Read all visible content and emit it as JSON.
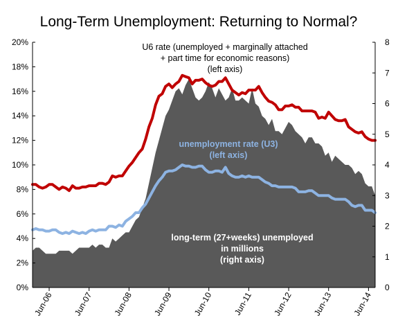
{
  "chart_data": {
    "type": "area",
    "title": "Long-Term Unemployment: Returning to Normal?",
    "x_tick_labels": [
      "Jun-06",
      "Jun-07",
      "Jun-08",
      "Jun-09",
      "Jun-10",
      "Jun-11",
      "Jun-12",
      "Jun-13",
      "Jun-14"
    ],
    "left_axis": {
      "ylim": [
        0,
        20
      ],
      "tick_labels": [
        "0%",
        "2%",
        "4%",
        "6%",
        "8%",
        "10%",
        "12%",
        "14%",
        "16%",
        "18%",
        "20%"
      ]
    },
    "right_axis": {
      "ylim": [
        0,
        8
      ],
      "tick_labels": [
        "0",
        "1",
        "2",
        "3",
        "4",
        "5",
        "6",
        "7",
        "8"
      ]
    },
    "grid": false,
    "start": "2006-01",
    "series": [
      {
        "name": "U6 rate (unemployed + marginally attached + part time for economic reasons) (left axis)",
        "label_lines": [
          "U6 rate (unemployed + marginally attached",
          "+ part time for economic reasons)",
          "(left axis)"
        ],
        "axis": "left",
        "style": "line",
        "color": "#c00000",
        "values": [
          8.4,
          8.4,
          8.2,
          8.1,
          8.2,
          8.4,
          8.4,
          8.2,
          8.0,
          8.2,
          8.1,
          7.9,
          8.3,
          8.1,
          8.1,
          8.2,
          8.2,
          8.3,
          8.3,
          8.3,
          8.5,
          8.5,
          8.4,
          8.6,
          9.1,
          9.0,
          9.1,
          9.1,
          9.5,
          9.9,
          10.2,
          10.6,
          11.0,
          11.3,
          12.1,
          13.1,
          13.8,
          14.9,
          15.6,
          15.8,
          16.4,
          16.6,
          16.3,
          16.6,
          16.8,
          17.3,
          17.2,
          17.1,
          16.6,
          16.9,
          16.9,
          17.0,
          16.7,
          16.5,
          16.4,
          16.5,
          16.8,
          16.8,
          17.1,
          16.6,
          16.1,
          15.9,
          15.7,
          15.9,
          15.8,
          16.1,
          16.1,
          16.1,
          16.4,
          15.9,
          15.5,
          15.2,
          15.1,
          14.9,
          14.5,
          14.5,
          14.8,
          14.8,
          14.9,
          14.7,
          14.7,
          14.4,
          14.4,
          14.4,
          14.4,
          14.3,
          13.8,
          13.9,
          13.8,
          14.3,
          14.0,
          13.7,
          13.6,
          13.6,
          13.7,
          13.1,
          12.9,
          12.7,
          12.6,
          12.7,
          12.3,
          12.1,
          12.0,
          12.0
        ]
      },
      {
        "name": "unemployment rate (U3) (left axis)",
        "label_lines": [
          "unemployment rate (U3)",
          "(left axis)"
        ],
        "axis": "left",
        "style": "line",
        "color": "#8db3e2",
        "values": [
          4.7,
          4.8,
          4.7,
          4.7,
          4.6,
          4.6,
          4.7,
          4.7,
          4.5,
          4.4,
          4.5,
          4.4,
          4.6,
          4.5,
          4.4,
          4.5,
          4.4,
          4.6,
          4.7,
          4.6,
          4.7,
          4.7,
          4.7,
          5.0,
          5.0,
          4.9,
          5.1,
          5.0,
          5.4,
          5.6,
          5.8,
          6.1,
          6.1,
          6.5,
          6.8,
          7.3,
          7.8,
          8.3,
          8.7,
          9.0,
          9.4,
          9.5,
          9.5,
          9.6,
          9.8,
          10.0,
          9.9,
          9.9,
          9.8,
          9.8,
          9.9,
          9.9,
          9.6,
          9.4,
          9.4,
          9.5,
          9.5,
          9.4,
          9.8,
          9.3,
          9.1,
          9.0,
          9.0,
          9.1,
          9.0,
          9.1,
          9.0,
          9.0,
          9.0,
          8.8,
          8.6,
          8.5,
          8.3,
          8.3,
          8.2,
          8.2,
          8.2,
          8.2,
          8.2,
          8.1,
          7.8,
          7.8,
          7.8,
          7.9,
          7.9,
          7.7,
          7.5,
          7.5,
          7.5,
          7.5,
          7.3,
          7.2,
          7.2,
          7.2,
          7.2,
          7.0,
          6.7,
          6.6,
          6.7,
          6.7,
          6.3,
          6.3,
          6.3,
          6.1
        ]
      },
      {
        "name": "long-term (27+weeks) unemployed in millions (right axis)",
        "label_lines": [
          "long-term (27+weeks) unemployed",
          "in millions",
          "(right axis)"
        ],
        "axis": "right",
        "style": "area",
        "color": "#595959",
        "values": [
          1.2,
          1.3,
          1.3,
          1.2,
          1.1,
          1.1,
          1.1,
          1.1,
          1.2,
          1.2,
          1.2,
          1.2,
          1.1,
          1.2,
          1.3,
          1.3,
          1.3,
          1.3,
          1.4,
          1.3,
          1.4,
          1.4,
          1.3,
          1.3,
          1.6,
          1.5,
          1.6,
          1.7,
          1.8,
          1.8,
          2.0,
          2.2,
          2.3,
          2.6,
          2.9,
          3.4,
          3.9,
          4.4,
          4.8,
          5.2,
          5.6,
          5.8,
          6.1,
          6.4,
          6.5,
          6.3,
          6.6,
          6.8,
          6.5,
          6.2,
          6.1,
          6.2,
          6.4,
          6.7,
          6.5,
          6.2,
          6.5,
          6.3,
          6.1,
          6.2,
          6.5,
          6.1,
          6.1,
          6.2,
          6.1,
          6.0,
          6.5,
          6.0,
          5.9,
          5.6,
          5.5,
          5.3,
          5.5,
          5.1,
          5.1,
          5.0,
          5.2,
          5.4,
          5.3,
          5.1,
          5.0,
          4.9,
          4.7,
          4.9,
          4.9,
          4.7,
          4.7,
          4.6,
          4.3,
          4.4,
          4.1,
          4.3,
          4.2,
          4.1,
          4.0,
          4.0,
          3.9,
          3.7,
          3.8,
          3.7,
          3.4,
          3.3,
          3.3,
          3.0
        ]
      }
    ]
  }
}
